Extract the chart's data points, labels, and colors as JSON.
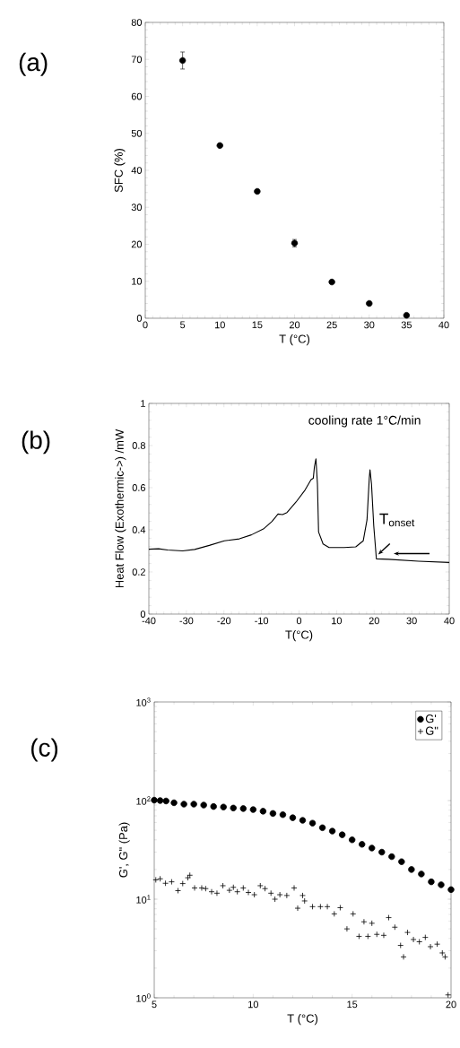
{
  "chart_data": [
    {
      "type": "scatter",
      "title": "(a)",
      "xlabel": "T (°C)",
      "ylabel": "SFC (%)",
      "x": [
        5,
        10,
        15,
        20,
        25,
        30,
        35
      ],
      "series": [
        {
          "color": "#000000",
          "values": [
            69.7,
            46.7,
            34.3,
            20.3,
            9.8,
            4,
            0.8
          ],
          "errors": [
            2.3,
            null,
            null,
            1.0,
            null,
            null,
            null
          ]
        }
      ],
      "xlim": [
        0,
        40
      ],
      "xticks": [
        0,
        5,
        10,
        15,
        20,
        25,
        30,
        35,
        40
      ],
      "ylim": [
        0,
        80
      ],
      "yticks": [
        0,
        10,
        20,
        30,
        40,
        50,
        60,
        70,
        80
      ],
      "marker": "circle"
    },
    {
      "type": "line",
      "title": "(b)",
      "xlabel": "T(°C)",
      "ylabel": "Heat Flow (Exothermic->) /mW",
      "x": [
        -40,
        -37.4,
        -35,
        -31,
        -27.8,
        -23.9,
        -19.9,
        -15.9,
        -12.7,
        -9.5,
        -7.2,
        -5.6,
        -4.4,
        -3.2,
        -0.8,
        1.6,
        3.2,
        3.8,
        4.1,
        4.5,
        4.9,
        5.2,
        6.4,
        8.0,
        12,
        15.1,
        17.1,
        18.1,
        18.7,
        18.9,
        19.3,
        19.9,
        20.6,
        23.8,
        31.8,
        40
      ],
      "series": [
        {
          "color": "#000000",
          "values": [
            0.308,
            0.31,
            0.304,
            0.3,
            0.307,
            0.326,
            0.348,
            0.357,
            0.376,
            0.404,
            0.44,
            0.475,
            0.472,
            0.482,
            0.532,
            0.589,
            0.638,
            0.645,
            0.7,
            0.737,
            0.617,
            0.39,
            0.333,
            0.316,
            0.316,
            0.319,
            0.348,
            0.447,
            0.645,
            0.685,
            0.617,
            0.418,
            0.262,
            0.26,
            0.251,
            0.245
          ]
        }
      ],
      "xlim": [
        -40,
        40
      ],
      "xticks": [
        -40,
        -30,
        -20,
        -10,
        0,
        10,
        20,
        30,
        40
      ],
      "ylim": [
        0,
        1
      ],
      "yticks": [
        0,
        0.2,
        0.4,
        0.6,
        0.8,
        1
      ],
      "line_style": "solid",
      "annotations": [
        "cooling rate 1°C/min",
        {
          "text": "T$_{onset}$",
          "x": 20.6,
          "y": 0.262
        }
      ]
    },
    {
      "type": "scatter",
      "title": "(c)",
      "xlabel": "T (°C)",
      "ylabel": "G', G\" (Pa)",
      "log": "y",
      "legend": "top right",
      "series": [
        {
          "name": "G'",
          "color": "#000000",
          "marker": "circle",
          "x": [
            5.0,
            5.3,
            5.6,
            6.0,
            6.5,
            7.0,
            7.5,
            8.0,
            8.5,
            9.0,
            9.5,
            10.0,
            10.5,
            11.0,
            11.5,
            12.0,
            12.5,
            13.0,
            13.5,
            14.0,
            14.5,
            15.0,
            15.5,
            16.0,
            16.5,
            17.0,
            17.5,
            18.0,
            18.5,
            19.0,
            19.5,
            20.0
          ],
          "values": [
            101,
            100,
            99,
            95,
            92,
            92,
            90,
            87,
            86,
            84,
            83,
            81,
            78,
            74,
            72,
            67,
            63,
            59,
            53,
            49,
            45,
            40,
            36,
            33,
            30,
            27,
            24,
            20,
            18,
            15,
            14,
            12.5
          ]
        },
        {
          "name": "G\"",
          "color": "#000000",
          "marker": "cross",
          "x": [
            5.08,
            5.3,
            5.57,
            5.88,
            6.2,
            6.44,
            6.7,
            6.8,
            7.04,
            7.4,
            7.6,
            7.9,
            8.17,
            8.47,
            8.8,
            9.0,
            9.2,
            9.5,
            9.76,
            10.06,
            10.36,
            10.6,
            10.9,
            11.1,
            11.35,
            11.7,
            12.07,
            12.25,
            12.5,
            12.6,
            13.0,
            13.4,
            13.75,
            14.1,
            14.4,
            14.74,
            15.05,
            15.35,
            15.6,
            15.8,
            16.0,
            16.25,
            16.6,
            16.85,
            17.16,
            17.45,
            17.6,
            17.8,
            18.1,
            18.4,
            18.7,
            18.96,
            19.3,
            19.56,
            19.7,
            19.85
          ],
          "values": [
            15.7,
            16.1,
            14.5,
            15,
            12.2,
            14.4,
            16.5,
            17.5,
            13.0,
            13.0,
            12.8,
            11.9,
            11.5,
            13.7,
            12.3,
            13.2,
            11.9,
            13.0,
            11.7,
            11.1,
            13.7,
            12.8,
            11.5,
            10.0,
            11.1,
            10.9,
            13.0,
            8.1,
            10.9,
            9.6,
            8.4,
            8.4,
            8.4,
            7.1,
            8.2,
            5.0,
            7.1,
            4.2,
            5.9,
            4.2,
            5.7,
            4.4,
            4.3,
            6.5,
            5.2,
            3.4,
            2.6,
            4.6,
            3.9,
            3.7,
            4.1,
            3.3,
            3.5,
            2.85,
            2.6,
            1.07
          ]
        }
      ],
      "xlim": [
        5,
        20
      ],
      "xticks": [
        5,
        10,
        15,
        20
      ],
      "ylim": [
        1,
        1000
      ],
      "yticks": [
        {
          "value": 1,
          "label": "10$^{0}$"
        },
        {
          "value": 10,
          "label": "10$^{1}$"
        },
        {
          "value": 100,
          "label": "10$^{2}$"
        },
        {
          "value": 1000,
          "label": "10$^{3}$"
        }
      ]
    }
  ]
}
